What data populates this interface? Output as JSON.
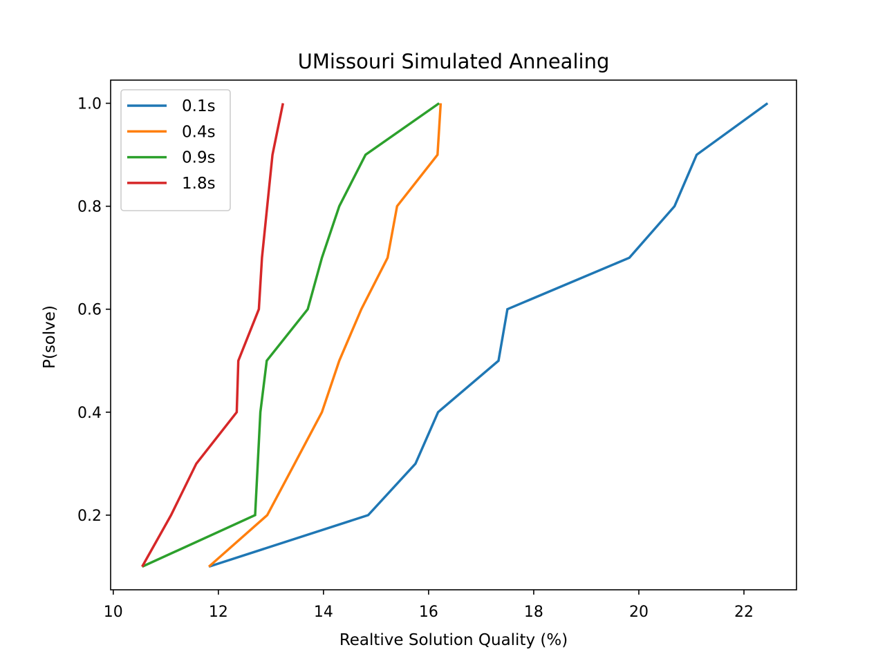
{
  "chart_data": {
    "type": "line",
    "title": "UMissouri Simulated Annealing",
    "xlabel": "Realtive Solution Quality (%)",
    "ylabel": "P(solve)",
    "xlim": [
      9.95,
      23.0
    ],
    "ylim": [
      0.055,
      1.045
    ],
    "xticks": [
      10,
      12,
      14,
      16,
      18,
      20,
      22
    ],
    "xtick_labels": [
      "10",
      "12",
      "14",
      "16",
      "18",
      "20",
      "22"
    ],
    "yticks": [
      0.2,
      0.4,
      0.6,
      0.8,
      1.0
    ],
    "ytick_labels": [
      "0.2",
      "0.4",
      "0.6",
      "0.8",
      "1.0"
    ],
    "grid": false,
    "legend_position": "top-left",
    "series": [
      {
        "name": "0.1s",
        "color": "#1f77b4",
        "points": [
          [
            11.82,
            0.1
          ],
          [
            14.85,
            0.2
          ],
          [
            15.75,
            0.3
          ],
          [
            16.18,
            0.4
          ],
          [
            17.33,
            0.5
          ],
          [
            17.5,
            0.6
          ],
          [
            19.82,
            0.7
          ],
          [
            20.68,
            0.8
          ],
          [
            21.1,
            0.9
          ],
          [
            22.45,
            1.0
          ]
        ]
      },
      {
        "name": "0.4s",
        "color": "#ff7f0e",
        "points": [
          [
            11.82,
            0.1
          ],
          [
            12.93,
            0.2
          ],
          [
            13.45,
            0.3
          ],
          [
            13.97,
            0.4
          ],
          [
            14.3,
            0.5
          ],
          [
            14.72,
            0.6
          ],
          [
            15.22,
            0.7
          ],
          [
            15.4,
            0.8
          ],
          [
            16.17,
            0.9
          ],
          [
            16.23,
            1.0
          ]
        ]
      },
      {
        "name": "0.9s",
        "color": "#2ca02c",
        "points": [
          [
            10.55,
            0.1
          ],
          [
            12.7,
            0.2
          ],
          [
            12.75,
            0.3
          ],
          [
            12.8,
            0.4
          ],
          [
            12.92,
            0.5
          ],
          [
            13.7,
            0.6
          ],
          [
            13.97,
            0.7
          ],
          [
            14.3,
            0.8
          ],
          [
            14.8,
            0.9
          ],
          [
            16.2,
            1.0
          ]
        ]
      },
      {
        "name": "1.8s",
        "color": "#d62728",
        "points": [
          [
            10.55,
            0.1
          ],
          [
            11.1,
            0.2
          ],
          [
            11.58,
            0.3
          ],
          [
            12.35,
            0.4
          ],
          [
            12.38,
            0.5
          ],
          [
            12.77,
            0.6
          ],
          [
            12.83,
            0.7
          ],
          [
            12.93,
            0.8
          ],
          [
            13.03,
            0.9
          ],
          [
            13.23,
            1.0
          ]
        ]
      }
    ]
  }
}
